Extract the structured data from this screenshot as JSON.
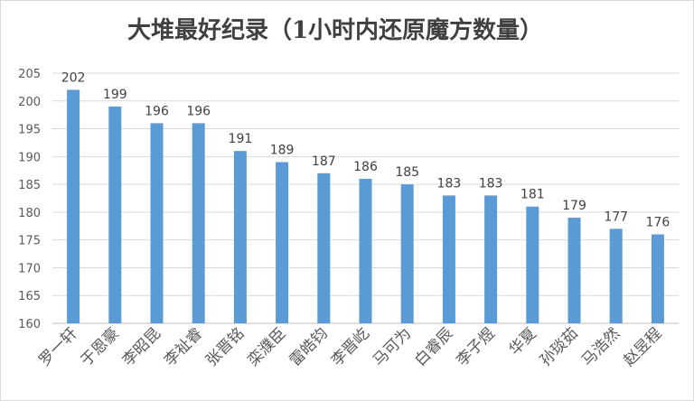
{
  "chart_data": {
    "type": "bar",
    "title": "大堆最好纪录（1小时内还原魔方数量）",
    "categories": [
      "罗一轩",
      "于恩豪",
      "李昭昆",
      "李祉睿",
      "张晋铭",
      "栾濮臣",
      "雷皓钧",
      "李晋屹",
      "马可为",
      "白睿辰",
      "李子煜",
      "华夏",
      "孙琰茹",
      "马浩然",
      "赵昱程"
    ],
    "values": [
      202,
      199,
      196,
      196,
      191,
      189,
      187,
      186,
      185,
      183,
      183,
      181,
      179,
      177,
      176
    ],
    "xlabel": "",
    "ylabel": "",
    "ylim": [
      160,
      205
    ],
    "yticks": [
      160,
      165,
      170,
      175,
      180,
      185,
      190,
      195,
      200,
      205
    ],
    "grid": true,
    "legend": "none",
    "bar_color": "#5b9bd5"
  }
}
